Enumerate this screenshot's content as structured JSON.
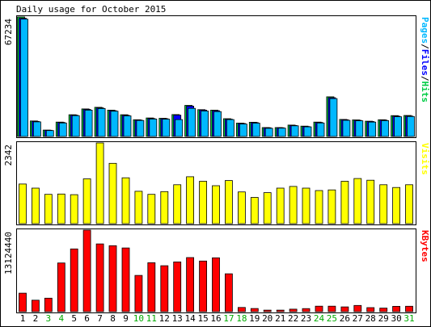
{
  "title": "Daily usage for October 2015",
  "colors": {
    "background": "#ffffff",
    "panel_border": "#000000",
    "hits": "#00cc44",
    "files": "#0000ff",
    "pages": "#00b8ff",
    "visits": "#ffff00",
    "kbytes": "#ff0000",
    "weekday_label": "#000000",
    "weekend_label": "#00aa00"
  },
  "chart_data": [
    {
      "type": "bar",
      "name": "hits-files-pages",
      "y_max_label": "67234",
      "ylim": [
        0,
        67234
      ],
      "legend_parts": [
        {
          "text": "Pages",
          "color": "#00b8ff"
        },
        {
          "text": "/",
          "color": "#000000"
        },
        {
          "text": "Files",
          "color": "#0000ff"
        },
        {
          "text": "/",
          "color": "#000000"
        },
        {
          "text": "Hits",
          "color": "#00cc44"
        }
      ],
      "series": [
        {
          "name": "Hits",
          "values": [
            67234,
            8700,
            3600,
            8100,
            12200,
            15500,
            16400,
            14800,
            12200,
            9400,
            10400,
            10200,
            12300,
            17500,
            15100,
            14800,
            10000,
            7500,
            8000,
            5000,
            5000,
            6400,
            5800,
            8100,
            22300,
            9600,
            9300,
            8600,
            9400,
            11700,
            11800
          ]
        },
        {
          "name": "Files",
          "values": [
            66500,
            8500,
            3500,
            7900,
            12000,
            15200,
            16100,
            14500,
            11900,
            9200,
            10100,
            10000,
            12000,
            17100,
            14800,
            14500,
            9700,
            7300,
            7800,
            4900,
            4900,
            6200,
            5600,
            7900,
            21800,
            9400,
            9100,
            8400,
            9200,
            11400,
            11500
          ]
        },
        {
          "name": "Pages",
          "values": [
            66000,
            8200,
            3300,
            7600,
            11700,
            14800,
            15700,
            14200,
            11600,
            9000,
            9800,
            9700,
            9500,
            15800,
            14300,
            14000,
            9500,
            7000,
            7500,
            4600,
            4700,
            6000,
            5400,
            7600,
            21300,
            9100,
            8800,
            8100,
            8900,
            11100,
            11200
          ]
        }
      ]
    },
    {
      "type": "bar",
      "name": "visits",
      "y_max_label": "2342",
      "ylim": [
        0,
        2342
      ],
      "legend_parts": [
        {
          "text": "Visits",
          "color": "#ffff00"
        }
      ],
      "series": [
        {
          "name": "Visits",
          "values": [
            1150,
            1030,
            850,
            860,
            840,
            1300,
            2342,
            1750,
            1330,
            940,
            850,
            930,
            1130,
            1360,
            1230,
            1100,
            1250,
            920,
            760,
            900,
            1030,
            1080,
            1030,
            960,
            980,
            1230,
            1310,
            1260,
            1130,
            1050,
            1130
          ]
        }
      ]
    },
    {
      "type": "bar",
      "name": "kbytes",
      "y_max_label": "13124440",
      "ylim": [
        0,
        13124440
      ],
      "legend_parts": [
        {
          "text": "KBytes",
          "color": "#ff0000"
        }
      ],
      "series": [
        {
          "name": "KBytes",
          "values": [
            2980000,
            1840000,
            2170000,
            7830000,
            10100000,
            13124440,
            10900000,
            10620000,
            10250000,
            5830000,
            7870000,
            7400000,
            8000000,
            8700000,
            8150000,
            8670000,
            6090000,
            680000,
            510000,
            250000,
            250000,
            400000,
            500000,
            890000,
            890000,
            770000,
            1000000,
            650000,
            570000,
            860000,
            870000
          ]
        }
      ]
    }
  ],
  "days": [
    {
      "label": "1",
      "weekend": false
    },
    {
      "label": "2",
      "weekend": false
    },
    {
      "label": "3",
      "weekend": true
    },
    {
      "label": "4",
      "weekend": true
    },
    {
      "label": "5",
      "weekend": false
    },
    {
      "label": "6",
      "weekend": false
    },
    {
      "label": "7",
      "weekend": false
    },
    {
      "label": "8",
      "weekend": false
    },
    {
      "label": "9",
      "weekend": false
    },
    {
      "label": "10",
      "weekend": true
    },
    {
      "label": "11",
      "weekend": true
    },
    {
      "label": "12",
      "weekend": false
    },
    {
      "label": "13",
      "weekend": false
    },
    {
      "label": "14",
      "weekend": false
    },
    {
      "label": "15",
      "weekend": false
    },
    {
      "label": "16",
      "weekend": false
    },
    {
      "label": "17",
      "weekend": true
    },
    {
      "label": "18",
      "weekend": true
    },
    {
      "label": "19",
      "weekend": false
    },
    {
      "label": "20",
      "weekend": false
    },
    {
      "label": "21",
      "weekend": false
    },
    {
      "label": "22",
      "weekend": false
    },
    {
      "label": "23",
      "weekend": false
    },
    {
      "label": "24",
      "weekend": true
    },
    {
      "label": "25",
      "weekend": true
    },
    {
      "label": "26",
      "weekend": false
    },
    {
      "label": "27",
      "weekend": false
    },
    {
      "label": "28",
      "weekend": false
    },
    {
      "label": "29",
      "weekend": false
    },
    {
      "label": "30",
      "weekend": false
    },
    {
      "label": "31",
      "weekend": true
    }
  ]
}
